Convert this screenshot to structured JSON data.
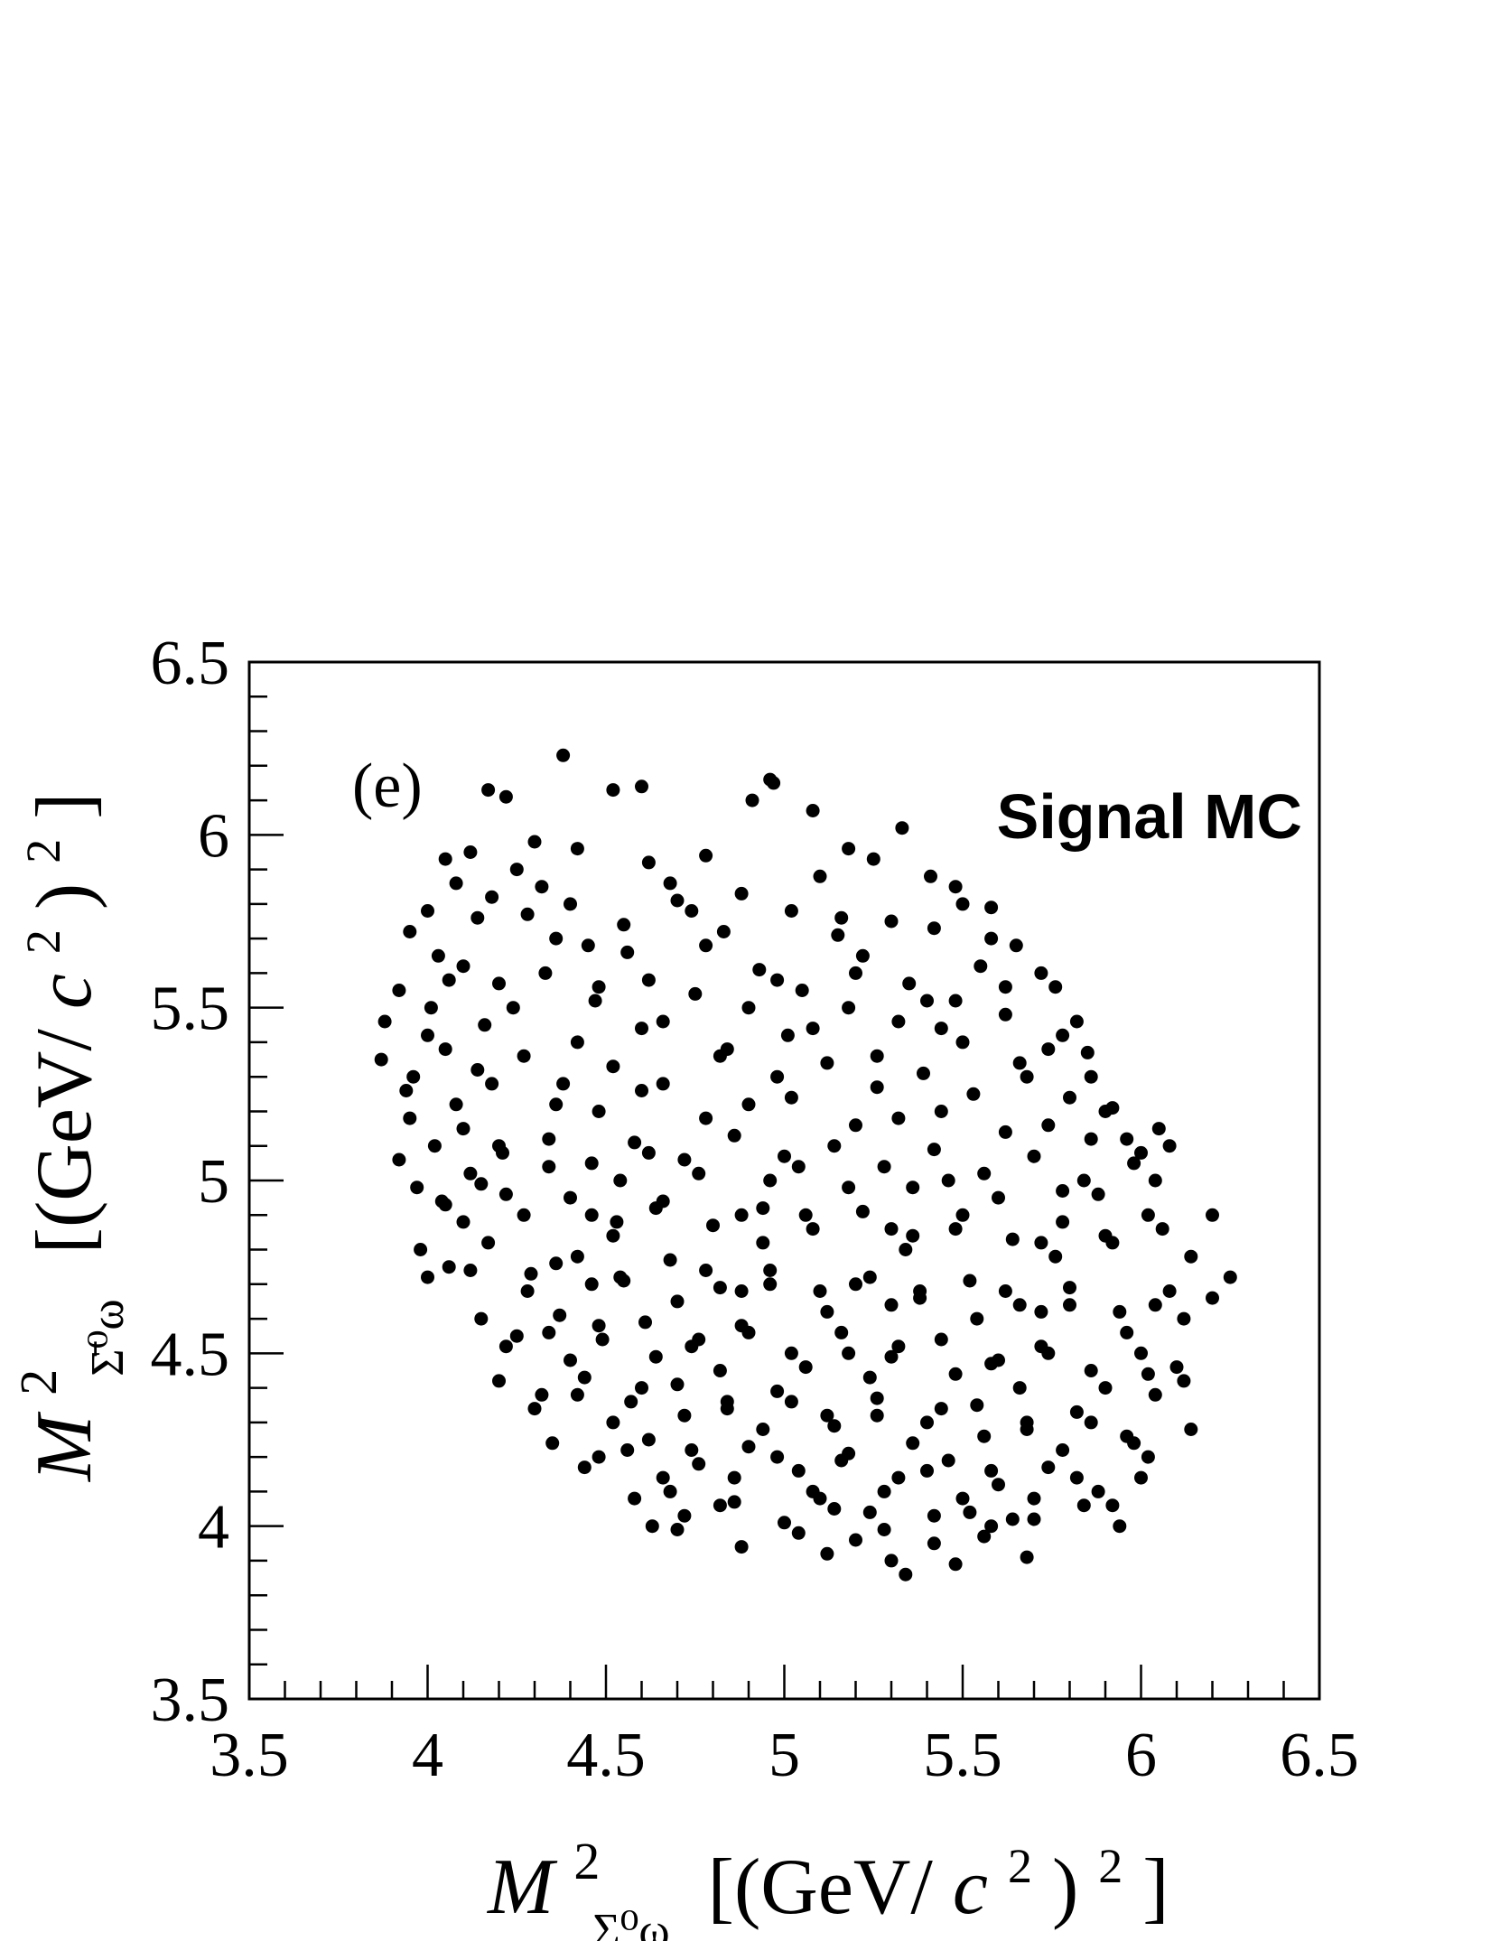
{
  "chart_data": {
    "type": "scatter",
    "panel_label": "(e)",
    "annotation": "Signal MC",
    "xlabel": {
      "main": "M",
      "superscript": "2",
      "subscript": "Σ⁰ω",
      "unit": "[(GeV/c²)²]",
      "unit_parts": {
        "open": "[(GeV/",
        "c": "c",
        "two": "2",
        "mid": ")",
        "two_b": "2",
        "close": "]"
      }
    },
    "ylabel": {
      "main": "M",
      "superscript": "2",
      "subscript": "Σ̄⁰ω",
      "unit": "[(GeV/c²)²]",
      "unit_parts": {
        "open": "[(GeV/",
        "c": "c",
        "two": "2",
        "mid": ")",
        "two_b": "2",
        "close": "]"
      }
    },
    "xlim": [
      3.5,
      6.5
    ],
    "ylim": [
      3.5,
      6.5
    ],
    "xticks": [
      "3.5",
      "4",
      "4.5",
      "5",
      "5.5",
      "6",
      "6.5"
    ],
    "yticks": [
      "3.5",
      "4",
      "4.5",
      "5",
      "5.5",
      "6",
      "6.5"
    ],
    "grid": false,
    "marker_color": "#000000",
    "points": [
      [
        4.38,
        6.23
      ],
      [
        4.52,
        6.13
      ],
      [
        4.96,
        6.16
      ],
      [
        4.97,
        6.15
      ],
      [
        4.17,
        6.13
      ],
      [
        4.22,
        6.11
      ],
      [
        4.6,
        6.14
      ],
      [
        4.91,
        6.1
      ],
      [
        5.08,
        6.07
      ],
      [
        5.33,
        6.02
      ],
      [
        4.05,
        5.93
      ],
      [
        4.12,
        5.95
      ],
      [
        4.3,
        5.98
      ],
      [
        4.42,
        5.96
      ],
      [
        4.62,
        5.92
      ],
      [
        4.78,
        5.94
      ],
      [
        5.18,
        5.96
      ],
      [
        5.25,
        5.93
      ],
      [
        5.41,
        5.88
      ],
      [
        5.48,
        5.85
      ],
      [
        3.95,
        5.72
      ],
      [
        4.0,
        5.78
      ],
      [
        4.08,
        5.86
      ],
      [
        4.18,
        5.82
      ],
      [
        4.28,
        5.77
      ],
      [
        4.4,
        5.8
      ],
      [
        4.55,
        5.74
      ],
      [
        4.7,
        5.81
      ],
      [
        4.88,
        5.83
      ],
      [
        5.02,
        5.78
      ],
      [
        5.15,
        5.71
      ],
      [
        5.3,
        5.75
      ],
      [
        5.42,
        5.73
      ],
      [
        5.58,
        5.79
      ],
      [
        5.65,
        5.68
      ],
      [
        5.72,
        5.6
      ],
      [
        5.76,
        5.56
      ],
      [
        3.88,
        5.46
      ],
      [
        3.92,
        5.55
      ],
      [
        4.01,
        5.5
      ],
      [
        4.1,
        5.62
      ],
      [
        4.2,
        5.57
      ],
      [
        4.33,
        5.6
      ],
      [
        4.47,
        5.52
      ],
      [
        4.62,
        5.58
      ],
      [
        4.75,
        5.54
      ],
      [
        4.93,
        5.61
      ],
      [
        5.05,
        5.55
      ],
      [
        5.18,
        5.5
      ],
      [
        5.35,
        5.57
      ],
      [
        5.48,
        5.52
      ],
      [
        5.62,
        5.48
      ],
      [
        5.78,
        5.42
      ],
      [
        5.85,
        5.37
      ],
      [
        3.87,
        5.35
      ],
      [
        3.96,
        5.3
      ],
      [
        4.05,
        5.38
      ],
      [
        4.14,
        5.32
      ],
      [
        4.27,
        5.36
      ],
      [
        4.38,
        5.28
      ],
      [
        4.52,
        5.33
      ],
      [
        4.66,
        5.28
      ],
      [
        4.82,
        5.36
      ],
      [
        4.98,
        5.3
      ],
      [
        5.12,
        5.34
      ],
      [
        5.26,
        5.27
      ],
      [
        5.39,
        5.31
      ],
      [
        5.53,
        5.25
      ],
      [
        5.68,
        5.3
      ],
      [
        5.8,
        5.24
      ],
      [
        5.92,
        5.21
      ],
      [
        5.96,
        5.12
      ],
      [
        6.05,
        5.15
      ],
      [
        3.95,
        5.18
      ],
      [
        4.02,
        5.1
      ],
      [
        4.1,
        5.15
      ],
      [
        4.21,
        5.08
      ],
      [
        4.34,
        5.12
      ],
      [
        4.46,
        5.05
      ],
      [
        4.58,
        5.11
      ],
      [
        4.72,
        5.06
      ],
      [
        4.86,
        5.13
      ],
      [
        5.0,
        5.07
      ],
      [
        5.14,
        5.1
      ],
      [
        5.28,
        5.04
      ],
      [
        5.42,
        5.09
      ],
      [
        5.56,
        5.02
      ],
      [
        5.7,
        5.07
      ],
      [
        5.84,
        5.0
      ],
      [
        5.98,
        5.05
      ],
      [
        6.08,
        5.1
      ],
      [
        3.97,
        4.98
      ],
      [
        4.05,
        4.93
      ],
      [
        4.15,
        4.99
      ],
      [
        4.27,
        4.9
      ],
      [
        4.4,
        4.95
      ],
      [
        4.53,
        4.88
      ],
      [
        4.66,
        4.94
      ],
      [
        4.8,
        4.87
      ],
      [
        4.94,
        4.92
      ],
      [
        5.08,
        4.86
      ],
      [
        5.22,
        4.91
      ],
      [
        5.36,
        4.84
      ],
      [
        5.5,
        4.9
      ],
      [
        5.64,
        4.83
      ],
      [
        5.78,
        4.88
      ],
      [
        5.92,
        4.82
      ],
      [
        6.06,
        4.86
      ],
      [
        6.2,
        4.9
      ],
      [
        6.25,
        4.72
      ],
      [
        3.98,
        4.8
      ],
      [
        4.06,
        4.75
      ],
      [
        4.17,
        4.82
      ],
      [
        4.29,
        4.73
      ],
      [
        4.42,
        4.78
      ],
      [
        4.55,
        4.71
      ],
      [
        4.68,
        4.77
      ],
      [
        4.82,
        4.69
      ],
      [
        4.96,
        4.74
      ],
      [
        5.1,
        4.68
      ],
      [
        5.24,
        4.72
      ],
      [
        5.38,
        4.66
      ],
      [
        5.52,
        4.71
      ],
      [
        5.66,
        4.64
      ],
      [
        5.8,
        4.69
      ],
      [
        5.94,
        4.62
      ],
      [
        6.08,
        4.68
      ],
      [
        6.2,
        4.66
      ],
      [
        4.15,
        4.6
      ],
      [
        4.25,
        4.55
      ],
      [
        4.37,
        4.61
      ],
      [
        4.49,
        4.54
      ],
      [
        4.61,
        4.59
      ],
      [
        4.74,
        4.52
      ],
      [
        4.88,
        4.58
      ],
      [
        5.02,
        4.5
      ],
      [
        5.16,
        4.56
      ],
      [
        5.3,
        4.49
      ],
      [
        5.44,
        4.54
      ],
      [
        5.58,
        4.47
      ],
      [
        5.72,
        4.52
      ],
      [
        5.86,
        4.45
      ],
      [
        6.0,
        4.5
      ],
      [
        6.12,
        4.42
      ],
      [
        4.2,
        4.42
      ],
      [
        4.32,
        4.38
      ],
      [
        4.44,
        4.43
      ],
      [
        4.57,
        4.36
      ],
      [
        4.7,
        4.41
      ],
      [
        4.84,
        4.34
      ],
      [
        4.98,
        4.39
      ],
      [
        5.12,
        4.32
      ],
      [
        5.26,
        4.37
      ],
      [
        5.4,
        4.3
      ],
      [
        5.54,
        4.35
      ],
      [
        5.68,
        4.28
      ],
      [
        5.82,
        4.33
      ],
      [
        5.96,
        4.26
      ],
      [
        6.14,
        4.28
      ],
      [
        4.35,
        4.24
      ],
      [
        4.48,
        4.2
      ],
      [
        4.62,
        4.25
      ],
      [
        4.76,
        4.18
      ],
      [
        4.9,
        4.23
      ],
      [
        5.04,
        4.16
      ],
      [
        5.18,
        4.21
      ],
      [
        5.32,
        4.14
      ],
      [
        5.46,
        4.19
      ],
      [
        5.6,
        4.12
      ],
      [
        5.74,
        4.17
      ],
      [
        5.88,
        4.1
      ],
      [
        6.02,
        4.2
      ],
      [
        4.58,
        4.08
      ],
      [
        4.72,
        4.03
      ],
      [
        4.86,
        4.07
      ],
      [
        5.0,
        4.01
      ],
      [
        5.14,
        4.05
      ],
      [
        5.28,
        3.99
      ],
      [
        5.42,
        4.03
      ],
      [
        5.56,
        3.97
      ],
      [
        5.7,
        4.02
      ],
      [
        5.84,
        4.06
      ],
      [
        4.88,
        3.94
      ],
      [
        5.12,
        3.92
      ],
      [
        5.3,
        3.9
      ],
      [
        5.34,
        3.86
      ],
      [
        5.48,
        3.89
      ],
      [
        5.68,
        3.91
      ],
      [
        4.03,
        5.65
      ],
      [
        4.45,
        5.68
      ],
      [
        4.83,
        5.72
      ],
      [
        5.22,
        5.65
      ],
      [
        5.55,
        5.62
      ],
      [
        4.16,
        5.45
      ],
      [
        4.6,
        5.44
      ],
      [
        5.01,
        5.42
      ],
      [
        5.44,
        5.44
      ],
      [
        5.86,
        5.3
      ],
      [
        4.08,
        5.22
      ],
      [
        4.48,
        5.2
      ],
      [
        4.9,
        5.22
      ],
      [
        5.32,
        5.18
      ],
      [
        5.74,
        5.16
      ],
      [
        4.12,
        5.02
      ],
      [
        4.54,
        5.0
      ],
      [
        4.96,
        5.0
      ],
      [
        5.36,
        4.98
      ],
      [
        5.78,
        4.97
      ],
      [
        4.1,
        4.88
      ],
      [
        4.52,
        4.84
      ],
      [
        4.94,
        4.82
      ],
      [
        5.34,
        4.8
      ],
      [
        5.76,
        4.78
      ],
      [
        4.28,
        4.68
      ],
      [
        4.7,
        4.65
      ],
      [
        5.12,
        4.62
      ],
      [
        5.54,
        4.6
      ],
      [
        5.96,
        4.56
      ],
      [
        4.4,
        4.48
      ],
      [
        4.82,
        4.45
      ],
      [
        5.24,
        4.43
      ],
      [
        5.66,
        4.4
      ],
      [
        6.04,
        4.38
      ],
      [
        4.52,
        4.3
      ],
      [
        4.94,
        4.28
      ],
      [
        5.36,
        4.24
      ],
      [
        5.78,
        4.22
      ],
      [
        4.66,
        4.14
      ],
      [
        5.08,
        4.1
      ],
      [
        5.5,
        4.08
      ],
      [
        5.92,
        4.06
      ],
      [
        4.7,
        3.99
      ],
      [
        5.2,
        3.96
      ],
      [
        5.58,
        4.0
      ],
      [
        4.25,
        5.9
      ],
      [
        4.68,
        5.86
      ],
      [
        5.1,
        5.88
      ],
      [
        5.5,
        5.8
      ],
      [
        4.36,
        5.7
      ],
      [
        4.78,
        5.68
      ],
      [
        5.2,
        5.6
      ],
      [
        5.62,
        5.56
      ],
      [
        4.0,
        5.42
      ],
      [
        4.42,
        5.4
      ],
      [
        4.84,
        5.38
      ],
      [
        5.26,
        5.36
      ],
      [
        5.66,
        5.34
      ],
      [
        6.0,
        5.08
      ],
      [
        3.92,
        5.06
      ],
      [
        4.34,
        5.04
      ],
      [
        4.76,
        5.02
      ],
      [
        5.18,
        4.98
      ],
      [
        5.6,
        4.95
      ],
      [
        6.02,
        4.9
      ],
      [
        4.0,
        4.72
      ],
      [
        4.46,
        4.7
      ],
      [
        4.88,
        4.68
      ],
      [
        5.3,
        4.64
      ],
      [
        5.72,
        4.62
      ],
      [
        6.12,
        4.6
      ],
      [
        4.22,
        4.52
      ],
      [
        4.64,
        4.49
      ],
      [
        5.06,
        4.46
      ],
      [
        5.48,
        4.44
      ],
      [
        5.9,
        4.4
      ],
      [
        4.3,
        4.34
      ],
      [
        4.72,
        4.32
      ],
      [
        5.14,
        4.29
      ],
      [
        5.56,
        4.26
      ],
      [
        5.98,
        4.24
      ],
      [
        4.44,
        4.17
      ],
      [
        4.86,
        4.14
      ],
      [
        5.28,
        4.1
      ],
      [
        5.7,
        4.08
      ],
      [
        4.63,
        4.0
      ],
      [
        5.04,
        3.98
      ],
      [
        5.42,
        3.95
      ],
      [
        4.14,
        5.76
      ],
      [
        4.56,
        5.66
      ],
      [
        4.98,
        5.58
      ],
      [
        5.4,
        5.52
      ],
      [
        5.82,
        5.46
      ],
      [
        4.24,
        5.5
      ],
      [
        4.66,
        5.46
      ],
      [
        5.08,
        5.44
      ],
      [
        5.5,
        5.4
      ],
      [
        5.9,
        5.2
      ],
      [
        4.18,
        5.28
      ],
      [
        4.6,
        5.26
      ],
      [
        5.02,
        5.24
      ],
      [
        5.44,
        5.2
      ],
      [
        5.86,
        5.12
      ],
      [
        4.2,
        5.1
      ],
      [
        4.62,
        5.08
      ],
      [
        5.04,
        5.04
      ],
      [
        5.46,
        5.0
      ],
      [
        5.88,
        4.96
      ],
      [
        4.22,
        4.96
      ],
      [
        4.64,
        4.92
      ],
      [
        5.06,
        4.9
      ],
      [
        5.48,
        4.86
      ],
      [
        5.9,
        4.84
      ],
      [
        4.36,
        4.76
      ],
      [
        4.78,
        4.74
      ],
      [
        5.2,
        4.7
      ],
      [
        5.62,
        4.68
      ],
      [
        6.04,
        4.64
      ],
      [
        4.48,
        4.58
      ],
      [
        4.9,
        4.56
      ],
      [
        5.32,
        4.52
      ],
      [
        5.74,
        4.5
      ],
      [
        6.1,
        4.46
      ],
      [
        4.6,
        4.4
      ],
      [
        5.02,
        4.36
      ],
      [
        5.44,
        4.34
      ],
      [
        5.86,
        4.3
      ],
      [
        4.74,
        4.22
      ],
      [
        5.16,
        4.19
      ],
      [
        5.58,
        4.16
      ],
      [
        6.0,
        4.14
      ],
      [
        4.82,
        4.06
      ],
      [
        5.24,
        4.04
      ],
      [
        5.64,
        4.02
      ],
      [
        4.32,
        5.85
      ],
      [
        4.74,
        5.78
      ],
      [
        5.16,
        5.76
      ],
      [
        5.58,
        5.7
      ],
      [
        4.06,
        5.58
      ],
      [
        4.48,
        5.56
      ],
      [
        4.9,
        5.5
      ],
      [
        5.32,
        5.46
      ],
      [
        5.74,
        5.38
      ],
      [
        3.94,
        5.26
      ],
      [
        4.36,
        5.22
      ],
      [
        4.78,
        5.18
      ],
      [
        5.2,
        5.16
      ],
      [
        5.62,
        5.14
      ],
      [
        6.04,
        5.0
      ],
      [
        4.04,
        4.94
      ],
      [
        4.46,
        4.9
      ],
      [
        4.88,
        4.9
      ],
      [
        5.3,
        4.86
      ],
      [
        5.72,
        4.82
      ],
      [
        6.14,
        4.78
      ],
      [
        4.12,
        4.74
      ],
      [
        4.54,
        4.72
      ],
      [
        4.96,
        4.7
      ],
      [
        5.38,
        4.68
      ],
      [
        5.8,
        4.64
      ],
      [
        4.34,
        4.56
      ],
      [
        4.76,
        4.54
      ],
      [
        5.18,
        4.5
      ],
      [
        5.6,
        4.48
      ],
      [
        6.02,
        4.44
      ],
      [
        4.42,
        4.38
      ],
      [
        4.84,
        4.36
      ],
      [
        5.26,
        4.32
      ],
      [
        5.68,
        4.3
      ],
      [
        4.56,
        4.22
      ],
      [
        4.98,
        4.2
      ],
      [
        5.4,
        4.16
      ],
      [
        5.82,
        4.14
      ],
      [
        4.68,
        4.1
      ],
      [
        5.1,
        4.08
      ],
      [
        5.52,
        4.04
      ],
      [
        5.94,
        4.0
      ]
    ]
  }
}
